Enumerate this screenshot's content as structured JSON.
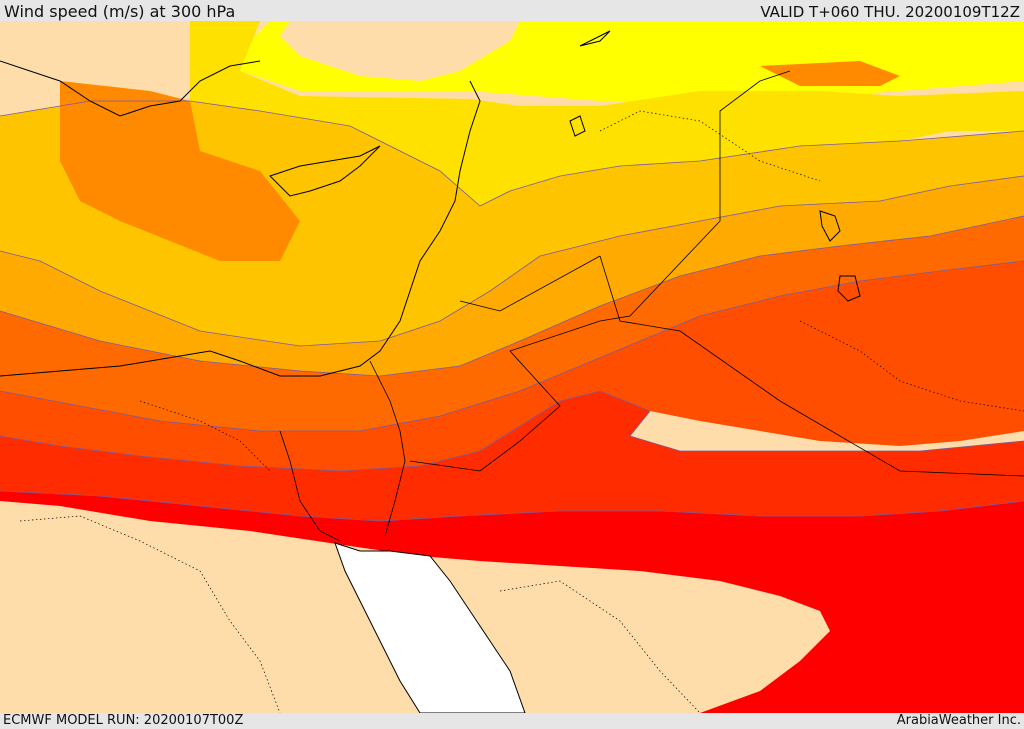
{
  "header": {
    "title": "Wind speed (m/s) at 300 hPa",
    "valid": "VALID T+060 THU. 20200109T12Z"
  },
  "footer": {
    "model_run": "ECMWF MODEL RUN: 20200107T00Z",
    "credit": "ArabiaWeather Inc."
  },
  "map": {
    "variable": "wind speed",
    "level": "300 hPa",
    "units": "m/s",
    "colors": {
      "below_threshold_land": "#ffddaa",
      "sea_no_fill": "#ffffff",
      "band_1": "#ffff00",
      "band_2": "#ffe100",
      "band_3": "#ffc400",
      "band_4": "#ffaa00",
      "band_5": "#ff8a00",
      "band_6": "#ff6a00",
      "band_7": "#ff4e00",
      "band_8": "#ff2c00",
      "band_9": "#ff0000"
    }
  }
}
